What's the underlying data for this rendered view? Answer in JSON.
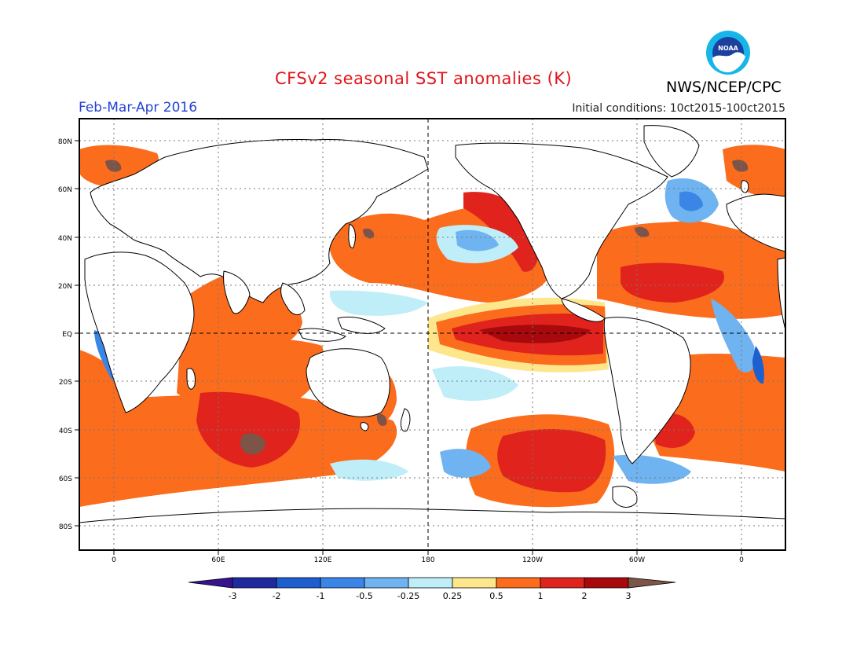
{
  "header": {
    "title": "CFSv2 seasonal SST anomalies (K)",
    "org": "NWS/NCEP/CPC",
    "logo_text": "NOAA",
    "period": "Feb-Mar-Apr 2016",
    "initial_conditions": "Initial conditions: 10ct2015-100ct2015"
  },
  "map": {
    "projection": "equirectangular, 180 at center",
    "lat_labels": [
      "80N",
      "60N",
      "40N",
      "20N",
      "EQ",
      "20S",
      "40S",
      "60S",
      "80S"
    ],
    "lon_labels": [
      "0",
      "60E",
      "120E",
      "180",
      "120W",
      "60W",
      "0"
    ],
    "lat_values": [
      80,
      60,
      40,
      20,
      0,
      -20,
      -40,
      -60,
      -80
    ],
    "lon_values": [
      0,
      60,
      120,
      180,
      240,
      300,
      360
    ]
  },
  "legend": {
    "labels": [
      "-3",
      "-2",
      "-1",
      "-0.5",
      "-0.25",
      "0.25",
      "0.5",
      "1",
      "2",
      "3"
    ],
    "colors": [
      "#1f2a9e",
      "#1e5fd0",
      "#3a85e6",
      "#6fb3f0",
      "#bfeef8",
      "#ffffff",
      "#fde68c",
      "#fb6c1c",
      "#e0231c",
      "#a8090d"
    ],
    "end_low_color": "#36138f",
    "end_high_color": "#7d5448"
  },
  "anomaly_colors": {
    "warm_1": "#fde68c",
    "warm_2": "#fb6c1c",
    "warm_3": "#e0231c",
    "warm_4": "#a8090d",
    "warm_5": "#7d5448",
    "cool_1": "#bfeef8",
    "cool_2": "#6fb3f0",
    "cool_3": "#3a85e6",
    "cool_4": "#1e5fd0"
  }
}
